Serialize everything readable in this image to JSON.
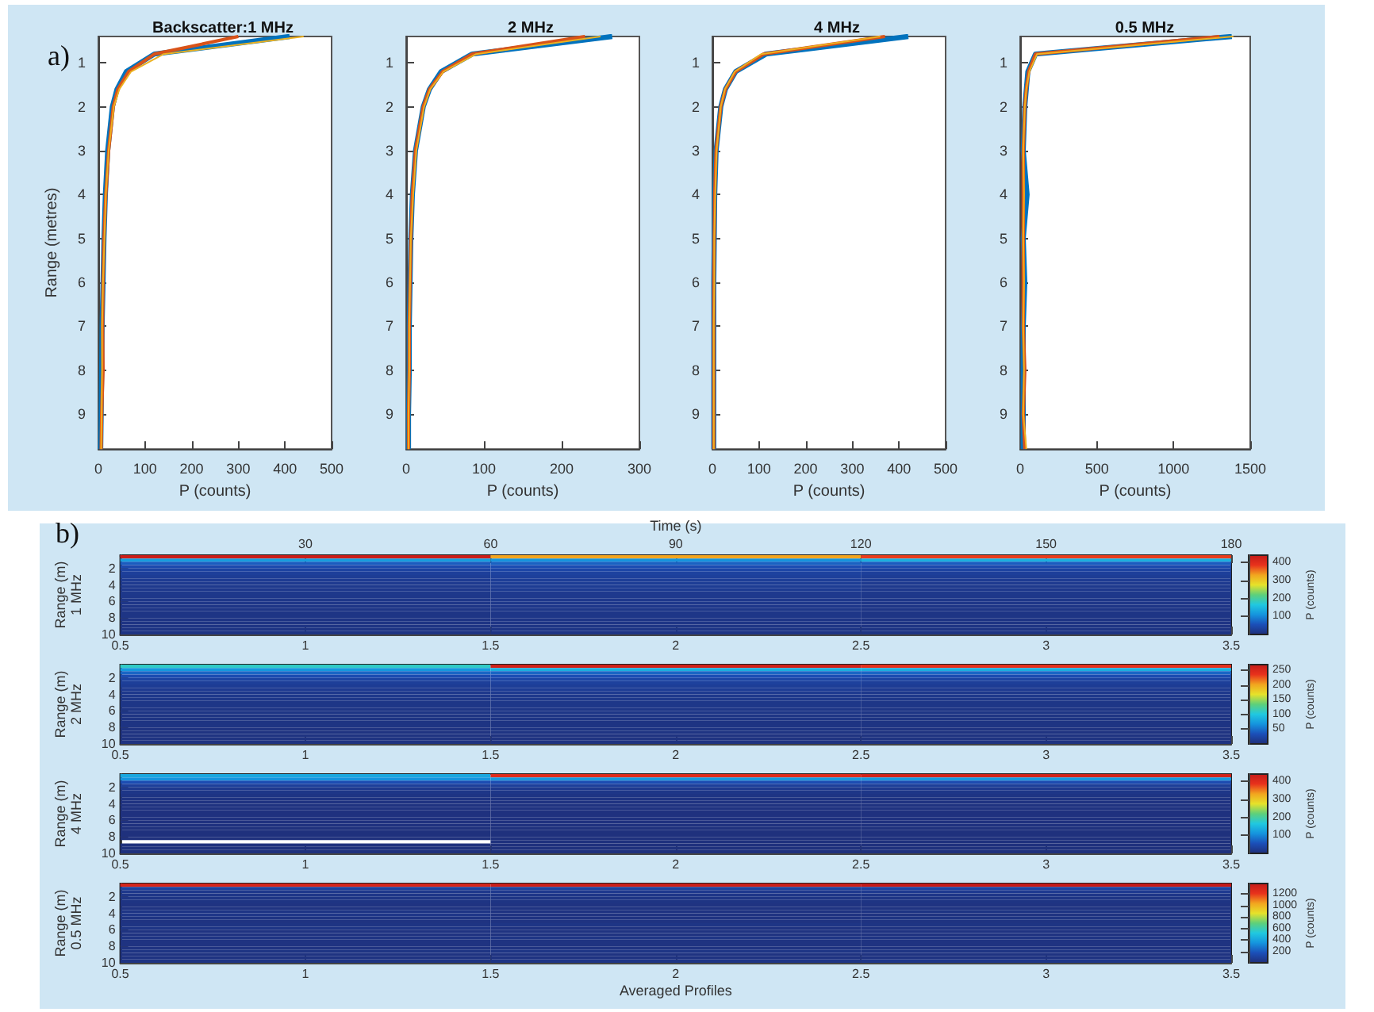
{
  "chart_data": [
    {
      "type": "line",
      "title": "Backscatter:1 MHz",
      "xlabel": "P (counts)",
      "ylabel": "Range (metres)",
      "annotations": [
        "a)"
      ],
      "marker": "none",
      "xlim": [
        0,
        500
      ],
      "xticks": [
        0,
        100,
        200,
        300,
        400,
        500
      ],
      "ylim": [
        9.8,
        0.4
      ],
      "yticks": [
        1,
        2,
        3,
        4,
        5,
        6,
        7,
        8,
        9
      ],
      "series": [
        {
          "color": "#0072bd",
          "x": [
            410,
            120,
            60,
            40,
            30,
            20,
            15,
            12,
            10,
            8,
            7,
            6,
            5
          ],
          "values": [
            0.4,
            0.8,
            1.2,
            1.6,
            2,
            3,
            4,
            5,
            6,
            7,
            8,
            9,
            9.8
          ]
        },
        {
          "color": "#d95319",
          "x": [
            300,
            120,
            65,
            42,
            32,
            22,
            16,
            12,
            10,
            9,
            10,
            7,
            6
          ],
          "values": [
            0.4,
            0.8,
            1.2,
            1.6,
            2,
            3,
            4,
            5,
            6,
            7,
            8,
            9,
            9.8
          ]
        },
        {
          "color": "#edb120",
          "x": [
            440,
            140,
            70,
            45,
            33,
            22,
            16,
            13,
            10,
            8,
            8,
            7,
            6
          ],
          "values": [
            0.4,
            0.8,
            1.2,
            1.6,
            2,
            3,
            4,
            5,
            6,
            7,
            8,
            9,
            9.8
          ]
        }
      ]
    },
    {
      "type": "line",
      "title": "2 MHz",
      "xlabel": "P (counts)",
      "marker": "none",
      "xlim": [
        0,
        300
      ],
      "xticks": [
        0,
        100,
        200,
        300
      ],
      "ylim": [
        9.8,
        0.4
      ],
      "yticks": [
        1,
        2,
        3,
        4,
        5,
        6,
        7,
        8,
        9
      ],
      "series": [
        {
          "color": "#0072bd",
          "x": [
            265,
            85,
            45,
            30,
            22,
            12,
            8,
            6,
            5,
            4,
            4,
            3,
            3
          ],
          "values": [
            0.4,
            0.8,
            1.2,
            1.6,
            2,
            3,
            4,
            5,
            6,
            7,
            8,
            9,
            9.8
          ]
        },
        {
          "color": "#d95319",
          "x": [
            230,
            85,
            47,
            30,
            22,
            12,
            8,
            6,
            5,
            4,
            4,
            3,
            3
          ],
          "values": [
            0.4,
            0.8,
            1.2,
            1.6,
            2,
            3,
            4,
            5,
            6,
            7,
            8,
            9,
            9.8
          ]
        },
        {
          "color": "#edb120",
          "x": [
            250,
            90,
            48,
            31,
            23,
            13,
            9,
            6,
            5,
            4,
            4,
            3,
            3
          ],
          "values": [
            0.4,
            0.8,
            1.2,
            1.6,
            2,
            3,
            4,
            5,
            6,
            7,
            8,
            9,
            9.8
          ]
        }
      ]
    },
    {
      "type": "line",
      "title": "4 MHz",
      "xlabel": "P (counts)",
      "marker": "none",
      "xlim": [
        0,
        500
      ],
      "xticks": [
        0,
        100,
        200,
        300,
        400,
        500
      ],
      "ylim": [
        9.8,
        0.4
      ],
      "yticks": [
        1,
        2,
        3,
        4,
        5,
        6,
        7,
        8,
        9
      ],
      "series": [
        {
          "color": "#0072bd",
          "x": [
            420,
            115,
            50,
            28,
            18,
            8,
            5,
            4,
            3,
            3,
            3,
            3,
            3
          ],
          "values": [
            0.4,
            0.8,
            1.2,
            1.6,
            2,
            3,
            4,
            5,
            6,
            7,
            8,
            9,
            9.8
          ]
        },
        {
          "color": "#d95319",
          "x": [
            370,
            110,
            50,
            28,
            18,
            8,
            5,
            4,
            3,
            3,
            3,
            3,
            3
          ],
          "values": [
            0.4,
            0.8,
            1.2,
            1.6,
            2,
            3,
            4,
            5,
            6,
            7,
            8,
            9,
            9.8
          ]
        },
        {
          "color": "#edb120",
          "x": [
            360,
            105,
            48,
            27,
            18,
            9,
            6,
            4,
            4,
            3,
            3,
            3,
            3
          ],
          "values": [
            0.4,
            0.8,
            1.2,
            1.6,
            2,
            3,
            4,
            5,
            6,
            7,
            8,
            9,
            9.8
          ]
        }
      ]
    },
    {
      "type": "line",
      "title": "0.5 MHz",
      "xlabel": "P (counts)",
      "marker": "none",
      "xlim": [
        0,
        1500
      ],
      "xticks": [
        0,
        500,
        1000,
        1500
      ],
      "ylim": [
        9.8,
        0.4
      ],
      "yticks": [
        1,
        2,
        3,
        4,
        5,
        6,
        7,
        8,
        9
      ],
      "series": [
        {
          "color": "#0072bd",
          "x": [
            1380,
            100,
            50,
            40,
            30,
            20,
            45,
            20,
            30,
            20,
            20,
            20,
            20
          ],
          "values": [
            0.4,
            0.8,
            1.2,
            1.6,
            2,
            3,
            4,
            5,
            6,
            7,
            8,
            9,
            9.8
          ]
        },
        {
          "color": "#d95319",
          "x": [
            1300,
            100,
            55,
            40,
            30,
            20,
            20,
            20,
            20,
            20,
            30,
            20,
            30
          ],
          "values": [
            0.4,
            0.8,
            1.2,
            1.6,
            2,
            3,
            4,
            5,
            6,
            7,
            8,
            9,
            9.8
          ]
        },
        {
          "color": "#edb120",
          "x": [
            1390,
            110,
            60,
            40,
            30,
            20,
            25,
            20,
            25,
            20,
            25,
            20,
            40
          ],
          "values": [
            0.4,
            0.8,
            1.2,
            1.6,
            2,
            3,
            4,
            5,
            6,
            7,
            8,
            9,
            9.8
          ]
        }
      ]
    },
    {
      "type": "heatmap",
      "ylabel": "Range (m)\n1 MHz",
      "annotations": [
        "b)"
      ],
      "x2label": "Time (s)",
      "x2lim": [
        0,
        180
      ],
      "x2ticks": [
        30,
        60,
        90,
        120,
        150,
        180
      ],
      "x": [
        1,
        2,
        3
      ],
      "xlim": [
        0.5,
        3.5
      ],
      "xticks": [
        0.5,
        1,
        1.5,
        2,
        2.5,
        3,
        3.5
      ],
      "ylim": [
        10,
        0.4
      ],
      "yticks": [
        2,
        4,
        6,
        8,
        10
      ],
      "clim": [
        0,
        440
      ],
      "cticks": [
        100,
        200,
        300,
        400
      ],
      "clabel": "P (counts)",
      "cells": [
        [
          430,
          330,
          380
        ],
        [
          120,
          110,
          140
        ],
        [
          65,
          70,
          65
        ],
        [
          45,
          50,
          45
        ],
        [
          35,
          40,
          35
        ],
        [
          28,
          33,
          28
        ],
        [
          24,
          29,
          24
        ],
        [
          21,
          26,
          21
        ],
        [
          19,
          24,
          19
        ],
        [
          17,
          22,
          17
        ],
        [
          16,
          21,
          16
        ],
        [
          15,
          18,
          15
        ],
        [
          14,
          17,
          14
        ],
        [
          13,
          16,
          13
        ],
        [
          12,
          15,
          12
        ],
        [
          11,
          14,
          11
        ],
        [
          11,
          13,
          11
        ],
        [
          10,
          12,
          10
        ],
        [
          10,
          12,
          10
        ],
        [
          9,
          11,
          9
        ],
        [
          9,
          11,
          9
        ],
        [
          9,
          10,
          9
        ],
        [
          8,
          10,
          8
        ],
        [
          8,
          9,
          8
        ]
      ]
    },
    {
      "type": "heatmap",
      "ylabel": "Range (m)\n2 MHz",
      "x": [
        1,
        2,
        3
      ],
      "xlim": [
        0.5,
        3.5
      ],
      "xticks": [
        0.5,
        1,
        1.5,
        2,
        2.5,
        3,
        3.5
      ],
      "ylim": [
        10,
        0.4
      ],
      "yticks": [
        2,
        4,
        6,
        8,
        10
      ],
      "clim": [
        0,
        270
      ],
      "cticks": [
        50,
        100,
        150,
        200,
        250
      ],
      "clabel": "P (counts)",
      "cells": [
        [
          110,
          260,
          240
        ],
        [
          70,
          85,
          85
        ],
        [
          45,
          45,
          45
        ],
        [
          30,
          32,
          30
        ],
        [
          22,
          24,
          22
        ],
        [
          17,
          19,
          17
        ],
        [
          14,
          16,
          14
        ],
        [
          12,
          14,
          12
        ],
        [
          10,
          12,
          10
        ],
        [
          9,
          10,
          9
        ],
        [
          8,
          9,
          8
        ],
        [
          7,
          8,
          7
        ],
        [
          7,
          8,
          7
        ],
        [
          6,
          7,
          6
        ],
        [
          6,
          7,
          6
        ],
        [
          5,
          6,
          5
        ],
        [
          5,
          6,
          5
        ],
        [
          5,
          5,
          5
        ],
        [
          5,
          5,
          5
        ],
        [
          4,
          5,
          4
        ],
        [
          4,
          5,
          4
        ],
        [
          4,
          4,
          4
        ],
        [
          4,
          4,
          4
        ],
        [
          4,
          4,
          4
        ]
      ]
    },
    {
      "type": "heatmap",
      "ylabel": "Range (m)\n4 MHz",
      "x": [
        1,
        2,
        3
      ],
      "xlim": [
        0.5,
        3.5
      ],
      "xticks": [
        0.5,
        1,
        1.5,
        2,
        2.5,
        3,
        3.5
      ],
      "ylim": [
        10,
        0.4
      ],
      "yticks": [
        2,
        4,
        6,
        8,
        10
      ],
      "clim": [
        0,
        440
      ],
      "cticks": [
        100,
        200,
        300,
        400
      ],
      "clabel": "P (counts)",
      "cells": [
        [
          130,
          400,
          420
        ],
        [
          110,
          115,
          115
        ],
        [
          50,
          50,
          48
        ],
        [
          28,
          28,
          27
        ],
        [
          18,
          18,
          18
        ],
        [
          12,
          12,
          12
        ],
        [
          9,
          9,
          9
        ],
        [
          7,
          7,
          7
        ],
        [
          6,
          6,
          6
        ],
        [
          5,
          5,
          5
        ],
        [
          5,
          5,
          5
        ],
        [
          4,
          4,
          4
        ],
        [
          4,
          4,
          4
        ],
        [
          4,
          4,
          4
        ],
        [
          4,
          4,
          4
        ],
        [
          4,
          4,
          4
        ],
        [
          3,
          3,
          3
        ],
        [
          3,
          3,
          3
        ],
        [
          3,
          3,
          3
        ],
        [
          3,
          3,
          3
        ],
        [
          null,
          3,
          3
        ],
        [
          3,
          3,
          3
        ],
        [
          3,
          3,
          3
        ],
        [
          3,
          3,
          3
        ]
      ]
    },
    {
      "type": "heatmap",
      "ylabel": "Range (m)\n0.5 MHz",
      "xlabel": "Averaged Profiles",
      "x": [
        1,
        2,
        3
      ],
      "xlim": [
        0.5,
        3.5
      ],
      "xticks": [
        0.5,
        1,
        1.5,
        2,
        2.5,
        3,
        3.5
      ],
      "ylim": [
        10,
        0.4
      ],
      "yticks": [
        2,
        4,
        6,
        8,
        10
      ],
      "clim": [
        0,
        1380
      ],
      "cticks": [
        200,
        400,
        600,
        800,
        1000,
        1200
      ],
      "clabel": "P (counts)",
      "cells": [
        [
          1300,
          1350,
          1380
        ],
        [
          100,
          100,
          110
        ],
        [
          50,
          55,
          60
        ],
        [
          40,
          40,
          40
        ],
        [
          30,
          30,
          30
        ],
        [
          25,
          25,
          25
        ],
        [
          20,
          20,
          20
        ],
        [
          20,
          20,
          20
        ],
        [
          30,
          20,
          25
        ],
        [
          40,
          20,
          20
        ],
        [
          25,
          20,
          25
        ],
        [
          20,
          20,
          20
        ],
        [
          25,
          30,
          25
        ],
        [
          30,
          20,
          20
        ],
        [
          20,
          20,
          20
        ],
        [
          20,
          20,
          20
        ],
        [
          25,
          30,
          25
        ],
        [
          20,
          20,
          20
        ],
        [
          20,
          20,
          20
        ],
        [
          20,
          20,
          20
        ],
        [
          25,
          30,
          25
        ],
        [
          20,
          20,
          20
        ],
        [
          20,
          20,
          20
        ],
        [
          25,
          30,
          40
        ]
      ]
    }
  ]
}
